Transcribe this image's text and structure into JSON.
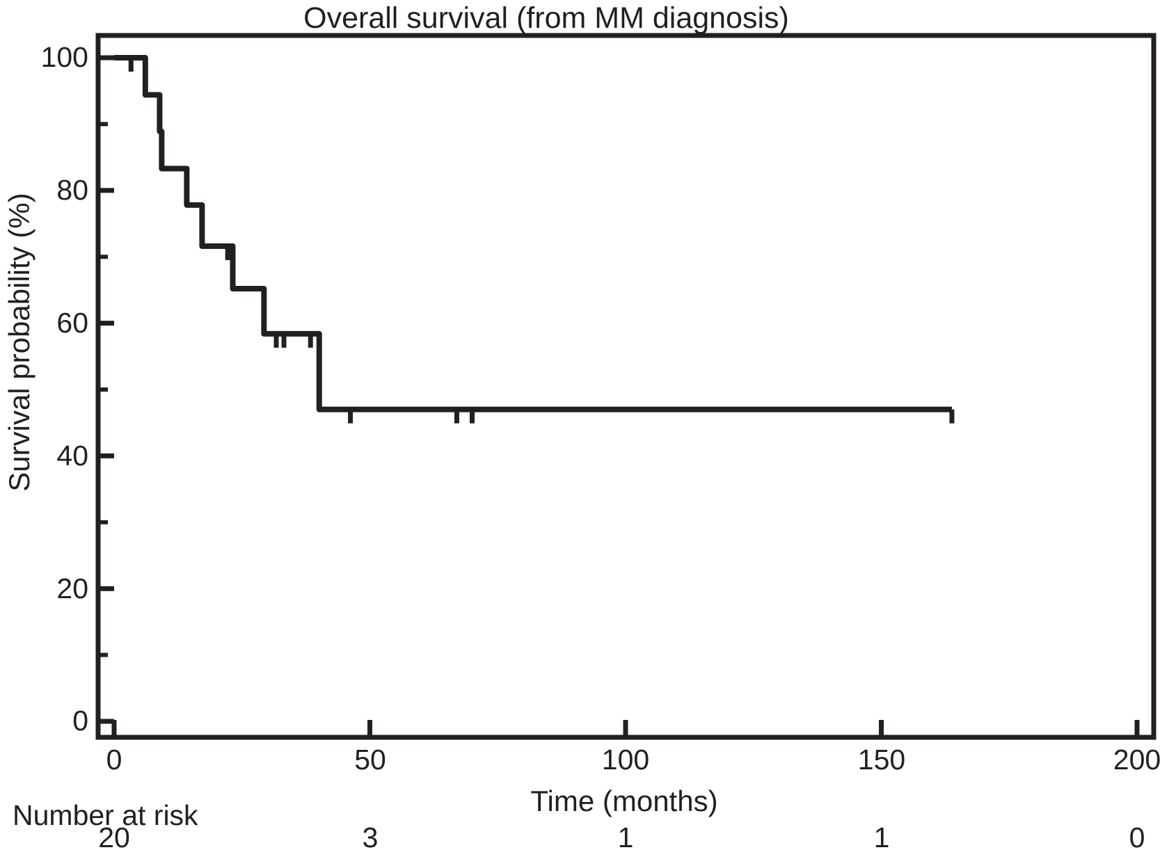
{
  "chart_data": {
    "type": "line",
    "subtype": "kaplan-meier-step-curve",
    "title": "Overall survival (from MM diagnosis)",
    "xlabel": "Time (months)",
    "ylabel": "Survival probability (%)",
    "xlim": [
      0,
      200
    ],
    "ylim": [
      0,
      100
    ],
    "x_ticks": [
      "0",
      "50",
      "100",
      "150",
      "200"
    ],
    "y_ticks": [
      "100",
      "80",
      "60",
      "40",
      "20",
      "0"
    ],
    "y_minor_ticks": [
      90,
      70,
      50,
      30,
      10
    ],
    "grid": "off",
    "legend": "none",
    "frame": "full-box-inward-ticks",
    "line_color": "#231f20",
    "series": [
      {
        "name": "Overall survival",
        "step_points": [
          {
            "t": 0,
            "s": 100
          },
          {
            "t": 6.1,
            "s": 94.4
          },
          {
            "t": 8.9,
            "s": 88.9
          },
          {
            "t": 9.3,
            "s": 83.3
          },
          {
            "t": 14.2,
            "s": 77.8
          },
          {
            "t": 17.2,
            "s": 71.6
          },
          {
            "t": 23.2,
            "s": 65.2
          },
          {
            "t": 29.3,
            "s": 58.4
          },
          {
            "t": 40.1,
            "s": 47.0
          }
        ],
        "end_t": 163.8,
        "censor_marks": [
          {
            "t": 3.3,
            "s": 100
          },
          {
            "t": 22.2,
            "s": 71.6
          },
          {
            "t": 31.7,
            "s": 58.4
          },
          {
            "t": 33.2,
            "s": 58.4
          },
          {
            "t": 38.4,
            "s": 58.4
          },
          {
            "t": 46.2,
            "s": 47.0
          },
          {
            "t": 67.0,
            "s": 47.0
          },
          {
            "t": 70.0,
            "s": 47.0
          },
          {
            "t": 163.8,
            "s": 47.0
          }
        ]
      }
    ],
    "number_at_risk": {
      "label": "Number at risk",
      "times": [
        0,
        50,
        100,
        150,
        200
      ],
      "values": [
        "20",
        "3",
        "1",
        "1",
        "0"
      ]
    }
  }
}
